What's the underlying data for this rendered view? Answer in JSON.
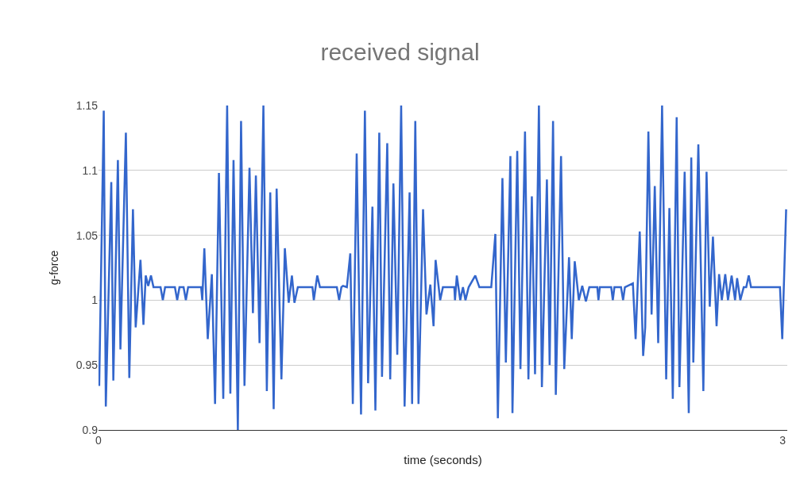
{
  "chart_data": {
    "type": "line",
    "title": "received signal",
    "xlabel": "time (seconds)",
    "ylabel": "g-force",
    "x": [
      0,
      0.003,
      0.023,
      0.032,
      0.056,
      0.065,
      0.085,
      0.096,
      0.12,
      0.135,
      0.151,
      0.163,
      0.184,
      0.197,
      0.207,
      0.218,
      0.23,
      0.241,
      0.272,
      0.282,
      0.292,
      0.335,
      0.345,
      0.355,
      0.373,
      0.383,
      0.393,
      0.45,
      0.455,
      0.464,
      0.479,
      0.497,
      0.511,
      0.528,
      0.547,
      0.564,
      0.578,
      0.592,
      0.611,
      0.625,
      0.64,
      0.662,
      0.677,
      0.69,
      0.706,
      0.723,
      0.738,
      0.753,
      0.768,
      0.781,
      0.802,
      0.817,
      0.834,
      0.848,
      0.859,
      0.874,
      0.938,
      0.944,
      0.959,
      0.971,
      1.045,
      1.055,
      1.065,
      1.072,
      1.089,
      1.104,
      1.115,
      1.132,
      1.151,
      1.168,
      1.182,
      1.201,
      1.214,
      1.231,
      1.243,
      1.266,
      1.279,
      1.293,
      1.31,
      1.327,
      1.342,
      1.364,
      1.375,
      1.389,
      1.403,
      1.423,
      1.438,
      1.455,
      1.469,
      1.478,
      1.498,
      1.51,
      1.56,
      1.563,
      1.571,
      1.586,
      1.598,
      1.609,
      1.623,
      1.652,
      1.67,
      1.722,
      1.74,
      1.751,
      1.771,
      1.786,
      1.806,
      1.815,
      1.836,
      1.85,
      1.87,
      1.885,
      1.9,
      1.914,
      1.931,
      1.944,
      1.966,
      1.978,
      1.993,
      2.005,
      2.028,
      2.042,
      2.063,
      2.075,
      2.088,
      2.106,
      2.121,
      2.137,
      2.152,
      2.187,
      2.192,
      2.198,
      2.248,
      2.255,
      2.262,
      2.291,
      2.3,
      2.308,
      2.343,
      2.355,
      2.373,
      2.388,
      2.397,
      2.411,
      2.425,
      2.439,
      2.454,
      2.471,
      2.489,
      2.503,
      2.518,
      2.535,
      2.547,
      2.57,
      2.588,
      2.599,
      2.608,
      2.63,
      2.652,
      2.666,
      2.68,
      2.694,
      2.71,
      2.721,
      2.733,
      2.748,
      2.76,
      2.776,
      2.791,
      2.8,
      2.814,
      2.829,
      2.84,
      2.851,
      2.861,
      2.988,
      2.998,
      3.015
    ],
    "series": [
      {
        "color": "#3366cc",
        "values": [
          0.95,
          0.934,
          1.146,
          0.918,
          1.091,
          0.938,
          1.108,
          0.962,
          1.129,
          0.94,
          1.07,
          0.979,
          1.031,
          0.981,
          1.019,
          1.011,
          1.019,
          1.01,
          1.01,
          1.0,
          1.01,
          1.01,
          1.0,
          1.01,
          1.01,
          1.0,
          1.01,
          1.01,
          1.0,
          1.04,
          0.97,
          1.02,
          0.92,
          1.098,
          0.924,
          1.15,
          0.928,
          1.108,
          0.9,
          1.138,
          0.934,
          1.102,
          0.99,
          1.096,
          0.967,
          1.15,
          0.93,
          1.083,
          0.916,
          1.086,
          0.939,
          1.04,
          0.998,
          1.019,
          0.998,
          1.01,
          1.01,
          1.0,
          1.019,
          1.01,
          1.01,
          1.0,
          1.01,
          1.011,
          1.01,
          1.036,
          0.92,
          1.113,
          0.912,
          1.146,
          0.936,
          1.072,
          0.915,
          1.129,
          0.941,
          1.121,
          0.939,
          1.09,
          0.958,
          1.15,
          0.918,
          1.083,
          0.92,
          1.138,
          0.92,
          1.07,
          0.989,
          1.012,
          0.98,
          1.031,
          1.0,
          1.01,
          1.01,
          1.0,
          1.019,
          1.0,
          1.01,
          1.0,
          1.01,
          1.019,
          1.01,
          1.01,
          1.051,
          0.909,
          1.094,
          0.952,
          1.111,
          0.913,
          1.115,
          0.947,
          1.13,
          0.939,
          1.08,
          0.943,
          1.15,
          0.933,
          1.093,
          0.95,
          1.138,
          0.927,
          1.111,
          0.947,
          1.033,
          0.97,
          1.03,
          1.0,
          1.011,
          0.999,
          1.01,
          1.01,
          1.0,
          1.01,
          1.01,
          1.0,
          1.01,
          1.01,
          1.0,
          1.01,
          1.013,
          0.97,
          1.053,
          0.957,
          0.979,
          1.13,
          0.989,
          1.088,
          0.967,
          1.15,
          0.939,
          1.071,
          0.924,
          1.141,
          0.933,
          1.099,
          0.913,
          1.11,
          0.952,
          1.12,
          0.93,
          1.099,
          0.995,
          1.049,
          0.98,
          1.02,
          1.0,
          1.02,
          1.0,
          1.019,
          1.0,
          1.017,
          1.0,
          1.01,
          1.01,
          1.019,
          1.01,
          1.01,
          0.97,
          1.07
        ]
      }
    ],
    "xlim": [
      0,
      3.02
    ],
    "xticks": [
      0,
      3
    ],
    "ylim": [
      0.9,
      1.15
    ],
    "yticks": [
      0.9,
      0.95,
      1,
      1.05,
      1.1,
      1.15
    ],
    "grid": "y",
    "marker": "none",
    "line_style": "solid"
  }
}
